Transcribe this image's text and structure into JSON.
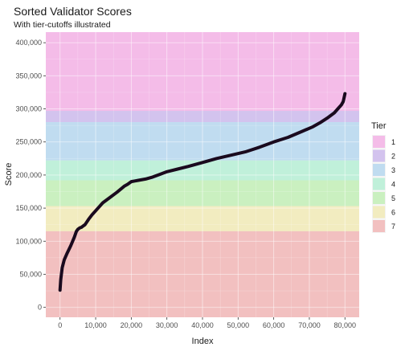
{
  "chart_data": {
    "type": "line",
    "title": "Sorted Validator Scores",
    "subtitle": "With tier-cutoffs illustrated",
    "xlabel": "Index",
    "ylabel": "Score",
    "xlim": [
      -4000,
      84000
    ],
    "ylim": [
      -15000,
      416000
    ],
    "x_ticks": [
      0,
      10000,
      20000,
      30000,
      40000,
      50000,
      60000,
      70000,
      80000
    ],
    "x_tick_labels": [
      "0",
      "10,000",
      "20,000",
      "30,000",
      "40,000",
      "50,000",
      "60,000",
      "70,000",
      "80,000"
    ],
    "y_ticks": [
      0,
      50000,
      100000,
      150000,
      200000,
      250000,
      300000,
      350000,
      400000
    ],
    "y_tick_labels": [
      "0",
      "50,000",
      "100,000",
      "150,000",
      "200,000",
      "250,000",
      "300,000",
      "350,000",
      "400,000"
    ],
    "grid": true,
    "panel_background": "#ebebeb",
    "line_color": "#1a0a1e",
    "legend": {
      "title": "Tier",
      "placement": "right",
      "entries": [
        {
          "label": "1",
          "color": "#f4bce8"
        },
        {
          "label": "2",
          "color": "#d3c3ee"
        },
        {
          "label": "3",
          "color": "#c0dcf0"
        },
        {
          "label": "4",
          "color": "#c0f0da"
        },
        {
          "label": "5",
          "color": "#caf0c0"
        },
        {
          "label": "6",
          "color": "#f2ecc0"
        },
        {
          "label": "7",
          "color": "#f2c0c0"
        }
      ]
    },
    "tier_bands": [
      {
        "tier": "1",
        "y_min": 297000,
        "y_max": 416000
      },
      {
        "tier": "2",
        "y_min": 280000,
        "y_max": 297000
      },
      {
        "tier": "3",
        "y_min": 222000,
        "y_max": 280000
      },
      {
        "tier": "4",
        "y_min": 192000,
        "y_max": 222000
      },
      {
        "tier": "5",
        "y_min": 153000,
        "y_max": 192000
      },
      {
        "tier": "6",
        "y_min": 115000,
        "y_max": 153000
      },
      {
        "tier": "7",
        "y_min": -15000,
        "y_max": 115000
      }
    ],
    "series": [
      {
        "x": [
          0,
          200,
          600,
          1200,
          2000,
          3000,
          4000,
          4600,
          5000,
          5500,
          6000,
          6500,
          7000,
          8000,
          9000,
          10000,
          12000,
          14000,
          16000,
          18000,
          19000,
          20000,
          21000,
          22000,
          24000,
          26000,
          28000,
          30000,
          33000,
          36000,
          40000,
          44000,
          48000,
          52000,
          56000,
          60000,
          64000,
          68000,
          71000,
          73000,
          75000,
          77000,
          78000,
          79000,
          79500,
          79800,
          80000
        ],
        "y": [
          26000,
          42000,
          60000,
          72000,
          82000,
          93000,
          106000,
          115000,
          118000,
          120000,
          121000,
          123000,
          125000,
          133000,
          140000,
          146000,
          158000,
          166000,
          174000,
          183000,
          186000,
          190000,
          191000,
          192000,
          194000,
          197000,
          201000,
          205000,
          209000,
          213000,
          219000,
          225000,
          230000,
          235000,
          242000,
          250000,
          257000,
          266000,
          273000,
          279000,
          286000,
          294000,
          300000,
          306000,
          311000,
          318000,
          323000
        ]
      }
    ]
  }
}
